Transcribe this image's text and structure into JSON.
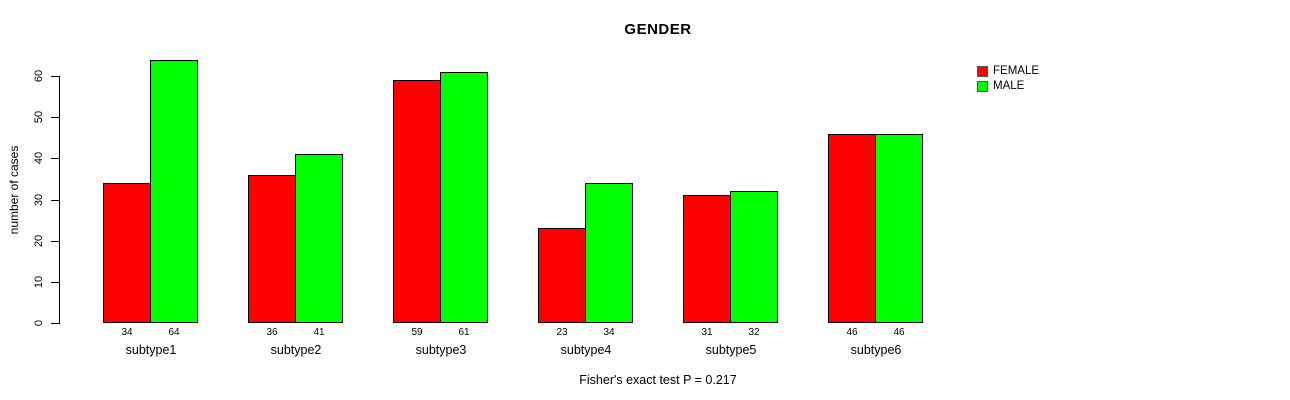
{
  "chart_data": {
    "type": "bar",
    "title": "GENDER",
    "ylabel": "number of cases",
    "xlabel": "",
    "caption": "Fisher's exact test P = 0.217",
    "categories": [
      "subtype1",
      "subtype2",
      "subtype3",
      "subtype4",
      "subtype5",
      "subtype6"
    ],
    "series": [
      {
        "name": "FEMALE",
        "color": "#ff0000",
        "values": [
          34,
          36,
          59,
          23,
          31,
          46
        ]
      },
      {
        "name": "MALE",
        "color": "#00ff00",
        "values": [
          64,
          41,
          61,
          34,
          32,
          46
        ]
      }
    ],
    "yticks": [
      0,
      10,
      20,
      30,
      40,
      50,
      60
    ],
    "ylim": [
      0,
      64
    ],
    "grid": false,
    "legend_position": "top-right",
    "bar_border_color": "#000000",
    "value_labels_shown": true,
    "background_color": "#ffffff"
  }
}
